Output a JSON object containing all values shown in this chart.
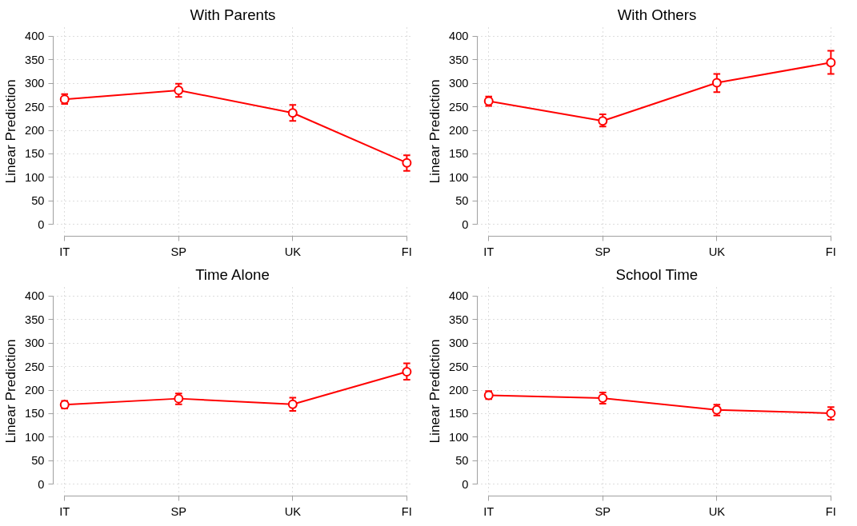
{
  "chart_data": [
    {
      "type": "line",
      "title": "With Parents",
      "ylabel": "Linear Prediction",
      "categories": [
        "IT",
        "SP",
        "UK",
        "FI"
      ],
      "values": [
        266,
        285,
        237,
        131
      ],
      "errors": [
        [
          256,
          277
        ],
        [
          271,
          299
        ],
        [
          220,
          254
        ],
        [
          114,
          147
        ]
      ],
      "color": "#ff0000",
      "marker": "circle",
      "ylim": [
        -25,
        420
      ],
      "yticks": [
        0,
        50,
        100,
        150,
        200,
        250,
        300,
        350,
        400
      ],
      "grid": true
    },
    {
      "type": "line",
      "title": "With Others",
      "ylabel": "Linear Prediction",
      "categories": [
        "IT",
        "SP",
        "UK",
        "FI"
      ],
      "values": [
        262,
        220,
        301,
        344
      ],
      "errors": [
        [
          252,
          272
        ],
        [
          208,
          234
        ],
        [
          281,
          320
        ],
        [
          320,
          369
        ]
      ],
      "color": "#ff0000",
      "marker": "circle",
      "ylim": [
        -25,
        420
      ],
      "yticks": [
        0,
        50,
        100,
        150,
        200,
        250,
        300,
        350,
        400
      ],
      "grid": true
    },
    {
      "type": "line",
      "title": "Time Alone",
      "ylabel": "Linear Prediction",
      "categories": [
        "IT",
        "SP",
        "UK",
        "FI"
      ],
      "values": [
        169,
        182,
        170,
        239
      ],
      "errors": [
        [
          161,
          177
        ],
        [
          170,
          193
        ],
        [
          156,
          184
        ],
        [
          222,
          257
        ]
      ],
      "color": "#ff0000",
      "marker": "circle",
      "ylim": [
        -25,
        420
      ],
      "yticks": [
        0,
        50,
        100,
        150,
        200,
        250,
        300,
        350,
        400
      ],
      "grid": true
    },
    {
      "type": "line",
      "title": "School Time",
      "ylabel": "Linear Prediction",
      "categories": [
        "IT",
        "SP",
        "UK",
        "FI"
      ],
      "values": [
        189,
        183,
        158,
        151
      ],
      "errors": [
        [
          181,
          198
        ],
        [
          171,
          195
        ],
        [
          146,
          169
        ],
        [
          137,
          164
        ]
      ],
      "color": "#ff0000",
      "marker": "circle",
      "ylim": [
        -25,
        420
      ],
      "yticks": [
        0,
        50,
        100,
        150,
        200,
        250,
        300,
        350,
        400
      ],
      "grid": true
    }
  ]
}
